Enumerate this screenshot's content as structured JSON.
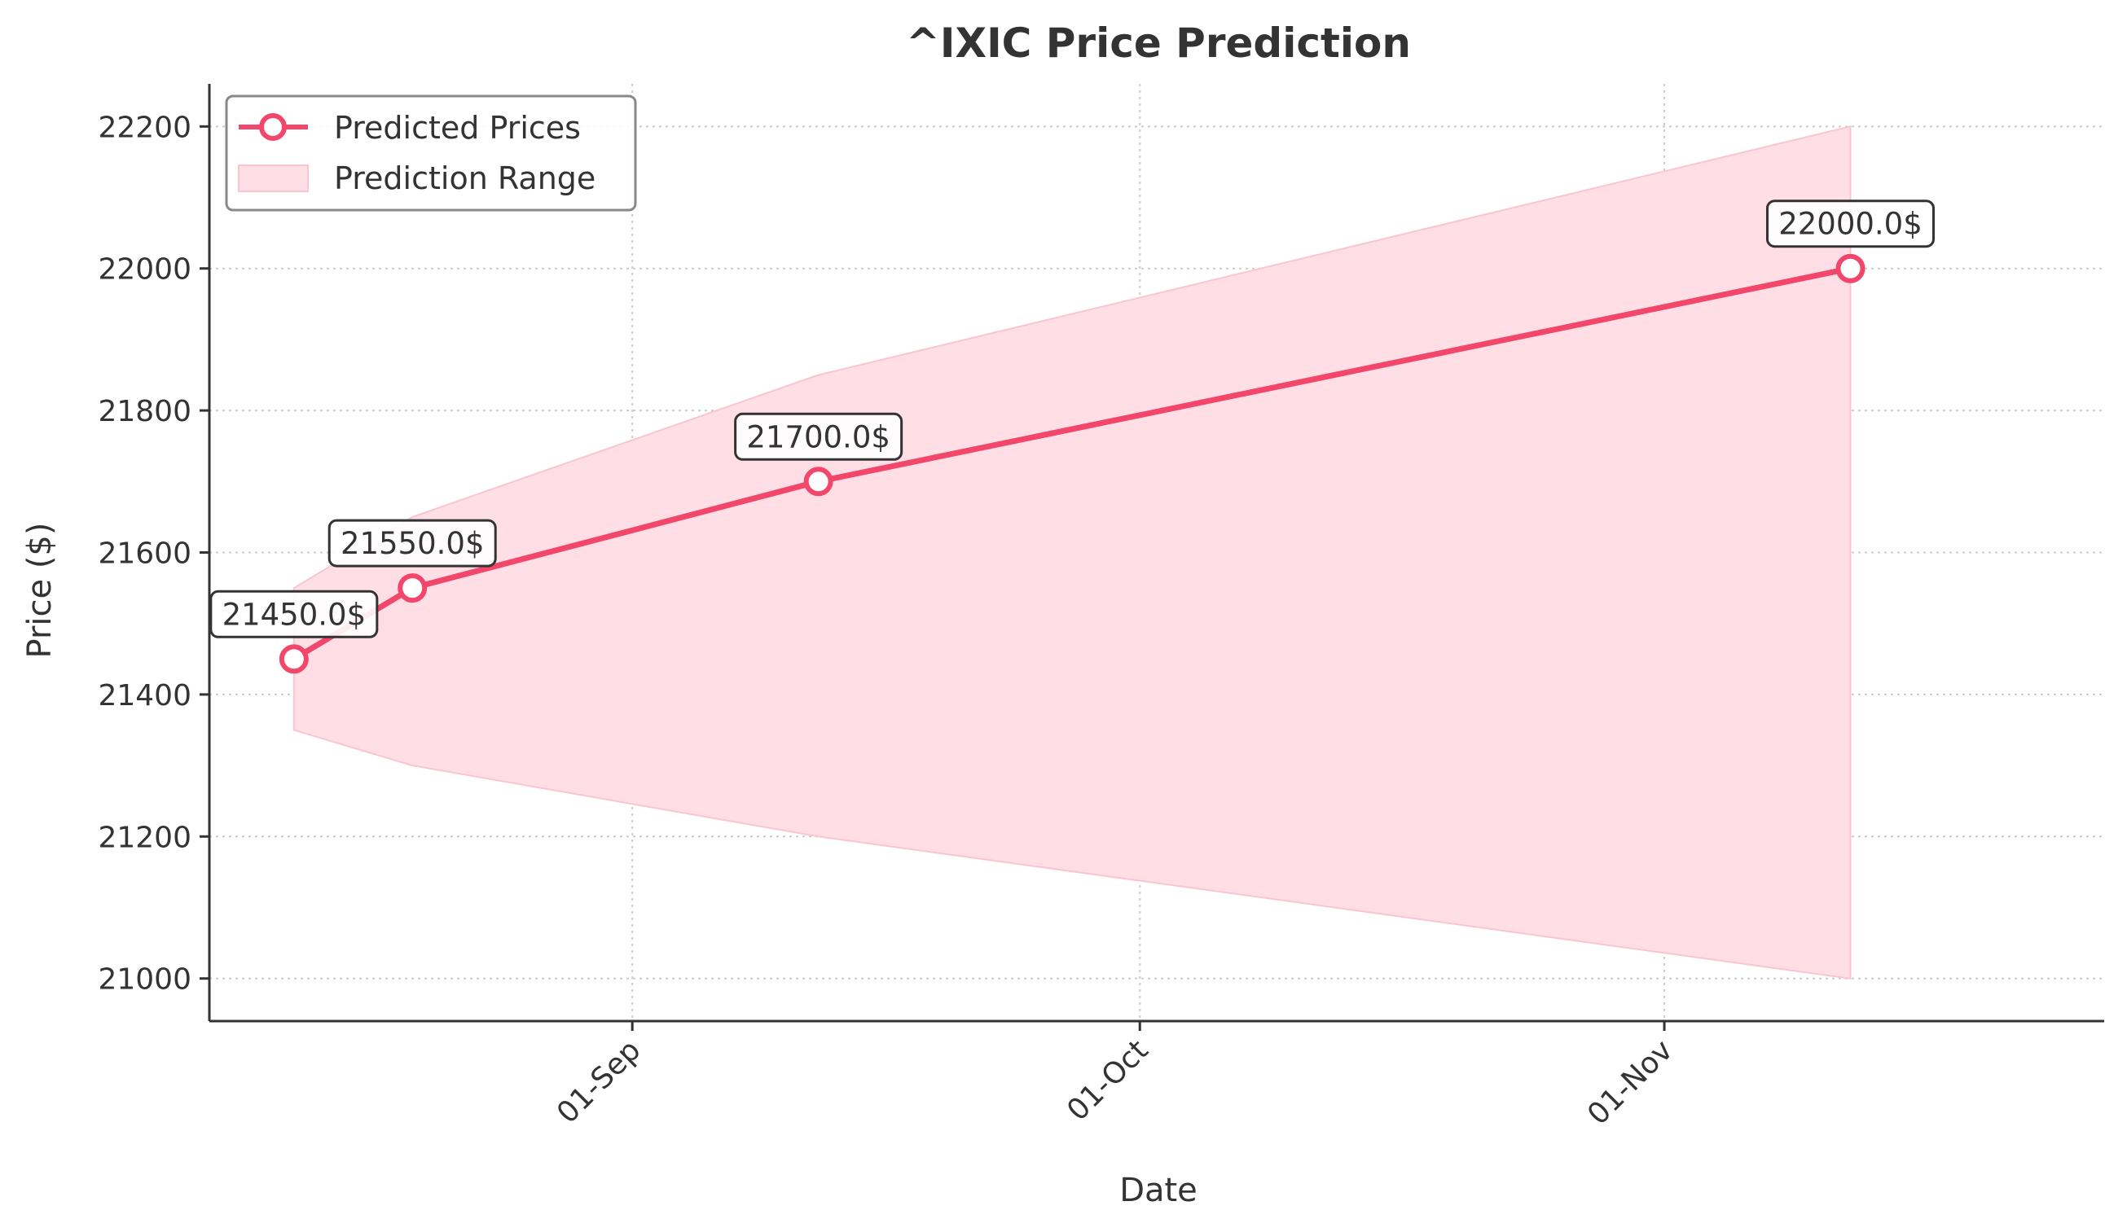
{
  "chart_data": {
    "type": "line",
    "title": "^IXIC Price Prediction",
    "xlabel": "Date",
    "ylabel": "Price ($)",
    "x_tick_labels": [
      "01-Sep",
      "01-Oct",
      "01-Nov"
    ],
    "x_tick_dates": [
      "2024-09-01",
      "2024-10-01",
      "2024-11-01"
    ],
    "xlim": [
      "2024-08-07",
      "2024-11-27"
    ],
    "ylim": [
      20940,
      22260
    ],
    "y_ticks": [
      21000,
      21200,
      21400,
      21600,
      21800,
      22000,
      22200
    ],
    "grid": true,
    "legend_position": "top-left",
    "colors": {
      "line": "#f2476a",
      "band": "#ffdfe5",
      "band_edge": "#f9c6d0",
      "axis": "#333333",
      "grid": "#cccccc"
    },
    "series": [
      {
        "name": "Predicted Prices",
        "x": [
          "2024-08-12",
          "2024-08-19",
          "2024-09-12",
          "2024-11-12"
        ],
        "values": [
          21450,
          21550,
          21700,
          22000
        ],
        "labels": [
          "21450.0$",
          "21550.0$",
          "21700.0$",
          "22000.0$"
        ]
      },
      {
        "name": "Prediction Range",
        "x": [
          "2024-08-12",
          "2024-08-19",
          "2024-09-12",
          "2024-11-12"
        ],
        "lower": [
          21350,
          21300,
          21200,
          21000
        ],
        "upper": [
          21550,
          21650,
          21850,
          22200
        ]
      }
    ]
  }
}
